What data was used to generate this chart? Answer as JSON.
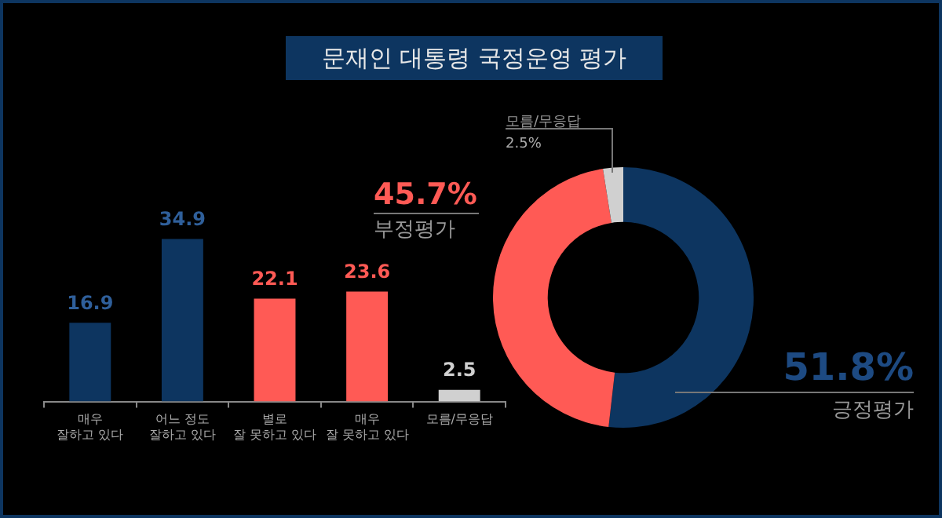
{
  "chart_data": [
    {
      "type": "bar",
      "title": "문재인 대통령 국정운영 평가",
      "categories": [
        "매우\n잘하고 있다",
        "어느 정도\n잘하고 있다",
        "별로\n잘 못하고 있다",
        "매우\n잘 못하고 있다",
        "모름/무응답"
      ],
      "values": [
        16.9,
        34.9,
        22.1,
        23.6,
        2.5
      ],
      "colors": [
        "#0d3560",
        "#0d3560",
        "#ff5a55",
        "#ff5a55",
        "#d0d0d0"
      ],
      "data_labels": true,
      "legend": false
    },
    {
      "type": "donut",
      "categories": [
        "긍정평가",
        "부정평가",
        "모름/무응답"
      ],
      "values": [
        51.8,
        45.7,
        2.5
      ],
      "colors": [
        "#0d3560",
        "#ff5a55",
        "#d0d0d0"
      ],
      "value_labels": [
        "51.8%",
        "45.7%",
        "2.5%"
      ],
      "legend": false
    }
  ]
}
